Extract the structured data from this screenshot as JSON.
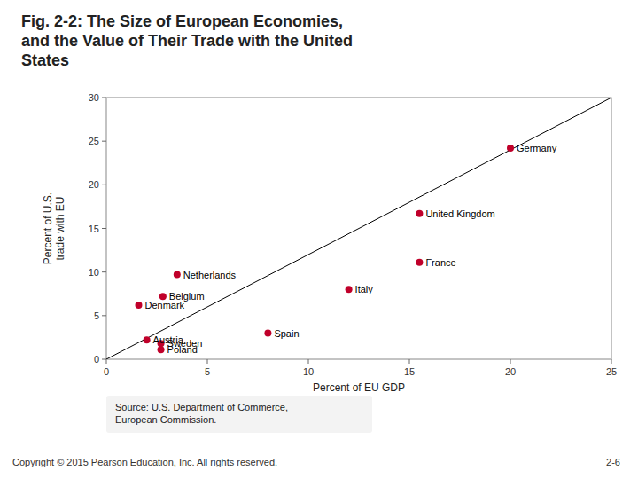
{
  "chart_data": {
    "type": "scatter",
    "title": "Fig. 2-2: The Size of European Economies,\nand the Value of Their Trade with the United\nStates",
    "x_label": "Percent of EU GDP",
    "y_label": "Percent of U.S.\ntrade with EU",
    "labels": [
      "Germany",
      "United Kingdom",
      "France",
      "Italy",
      "Netherlands",
      "Belgium",
      "Denmark",
      "Spain",
      "Austria",
      "Sweden",
      "Poland"
    ],
    "x": [
      20.0,
      15.5,
      15.5,
      12.0,
      3.5,
      2.8,
      1.6,
      8.0,
      2.0,
      2.7,
      2.7
    ],
    "values": [
      24.2,
      16.7,
      11.1,
      8.0,
      9.7,
      7.2,
      6.2,
      3.0,
      2.2,
      1.8,
      1.1
    ],
    "color": "#c0002a",
    "reference_line": {
      "x": [
        0,
        25
      ],
      "y": [
        0,
        30
      ]
    },
    "xlim": [
      0,
      25
    ],
    "ylim": [
      0,
      30
    ],
    "xticks": [
      0,
      5,
      10,
      15,
      20,
      25
    ],
    "yticks": [
      0,
      5,
      10,
      15,
      20,
      25,
      30
    ],
    "grid": false,
    "source": "Source: U.S. Department of Commerce,\nEuropean Commission.",
    "annotations": [
      "Copyright © 2015 Pearson Education, Inc. All rights reserved.",
      "2-6"
    ]
  }
}
